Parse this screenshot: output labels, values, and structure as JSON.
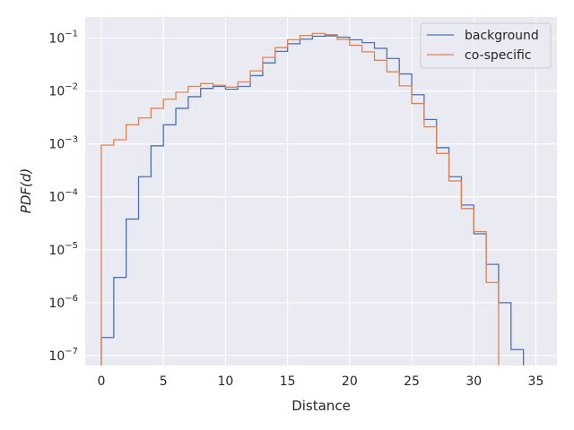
{
  "chart_data": {
    "type": "line",
    "style": "step histogram",
    "xlabel": "Distance",
    "ylabel": "PDF(d)",
    "xlim": [
      -1.3,
      36.7
    ],
    "ylim": [
      6.5e-08,
      0.25
    ],
    "yscale": "log",
    "grid": true,
    "legend_position": "top-right",
    "x_ticks": [
      0,
      5,
      10,
      15,
      20,
      25,
      30,
      35
    ],
    "y_ticks": [
      1e-07,
      1e-06,
      1e-05,
      0.0001,
      0.001,
      0.01,
      0.1
    ],
    "y_tick_labels": [
      {
        "base": "10",
        "exp": "−7"
      },
      {
        "base": "10",
        "exp": "−6"
      },
      {
        "base": "10",
        "exp": "−5"
      },
      {
        "base": "10",
        "exp": "−4"
      },
      {
        "base": "10",
        "exp": "−3"
      },
      {
        "base": "10",
        "exp": "−2"
      },
      {
        "base": "10",
        "exp": "−1"
      }
    ],
    "bin_edges": [
      0,
      1,
      2,
      3,
      4,
      5,
      6,
      7,
      8,
      9,
      10,
      11,
      12,
      13,
      14,
      15,
      16,
      17,
      18,
      19,
      20,
      21,
      22,
      23,
      24,
      25,
      26,
      27,
      28,
      29,
      30,
      31,
      32,
      33,
      34
    ],
    "series": [
      {
        "name": "background",
        "color": "#4c72b0",
        "values": [
          2.2e-07,
          3e-06,
          3.8e-05,
          0.00024,
          0.00092,
          0.0023,
          0.0047,
          0.0078,
          0.0112,
          0.0122,
          0.0108,
          0.0122,
          0.0195,
          0.034,
          0.056,
          0.078,
          0.096,
          0.108,
          0.11,
          0.104,
          0.093,
          0.082,
          0.064,
          0.041,
          0.021,
          0.0085,
          0.0029,
          0.00085,
          0.00024,
          7e-05,
          2e-05,
          5.3e-06,
          1e-06,
          1.3e-07
        ]
      },
      {
        "name": "co-specific",
        "color": "#dd8452",
        "values": [
          0.00095,
          0.0012,
          0.0023,
          0.0031,
          0.0047,
          0.007,
          0.0095,
          0.0122,
          0.0138,
          0.0128,
          0.0118,
          0.0148,
          0.024,
          0.043,
          0.066,
          0.093,
          0.112,
          0.122,
          0.116,
          0.095,
          0.073,
          0.055,
          0.038,
          0.023,
          0.0125,
          0.0058,
          0.0021,
          0.00066,
          0.0002,
          6e-05,
          2.2e-05,
          2.4e-06
        ]
      }
    ]
  }
}
